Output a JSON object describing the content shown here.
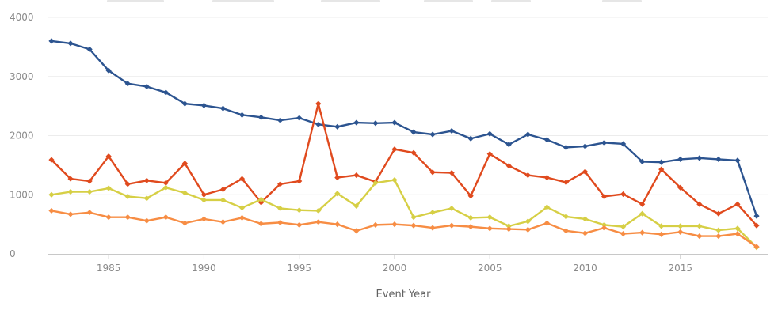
{
  "chart_data": {
    "type": "line",
    "title": "",
    "xlabel": "Event Year",
    "ylabel": "",
    "xlim": [
      1982,
      2019
    ],
    "ylim": [
      0,
      4000
    ],
    "x_ticks": [
      1985,
      1990,
      1995,
      2000,
      2005,
      2010,
      2015
    ],
    "y_ticks": [
      0,
      1000,
      2000,
      3000,
      4000
    ],
    "grid": "horizontal",
    "legend": "none",
    "x": [
      1982,
      1983,
      1984,
      1985,
      1986,
      1987,
      1988,
      1989,
      1990,
      1991,
      1992,
      1993,
      1994,
      1995,
      1996,
      1997,
      1998,
      1999,
      2000,
      2001,
      2002,
      2003,
      2004,
      2005,
      2006,
      2007,
      2008,
      2009,
      2010,
      2011,
      2012,
      2013,
      2014,
      2015,
      2016,
      2017,
      2018,
      2019
    ],
    "series": [
      {
        "color": "#2c5490",
        "values": [
          3600,
          3560,
          3460,
          3100,
          2880,
          2830,
          2730,
          2540,
          2510,
          2460,
          2350,
          2310,
          2260,
          2300,
          2190,
          2150,
          2220,
          2210,
          2220,
          2060,
          2020,
          2080,
          1950,
          2030,
          1850,
          2020,
          1930,
          1800,
          1820,
          1880,
          1860,
          1560,
          1550,
          1600,
          1620,
          1600,
          1580,
          640
        ]
      },
      {
        "color": "#e04a1e",
        "values": [
          1590,
          1270,
          1230,
          1650,
          1180,
          1240,
          1200,
          1530,
          1000,
          1090,
          1270,
          870,
          1180,
          1230,
          2540,
          1290,
          1330,
          1220,
          1770,
          1710,
          1380,
          1370,
          980,
          1690,
          1490,
          1330,
          1290,
          1210,
          1390,
          970,
          1010,
          840,
          1430,
          1120,
          840,
          680,
          840,
          480
        ]
      },
      {
        "color": "#d6cf45",
        "values": [
          1000,
          1050,
          1050,
          1110,
          970,
          940,
          1120,
          1030,
          910,
          910,
          780,
          920,
          770,
          740,
          730,
          1020,
          810,
          1200,
          1250,
          620,
          700,
          770,
          610,
          620,
          470,
          550,
          790,
          630,
          590,
          490,
          460,
          680,
          470,
          470,
          470,
          400,
          430,
          110
        ]
      },
      {
        "color": "#f78d44",
        "values": [
          730,
          670,
          700,
          620,
          620,
          560,
          620,
          520,
          590,
          540,
          610,
          510,
          530,
          490,
          540,
          500,
          390,
          490,
          500,
          480,
          440,
          480,
          460,
          430,
          420,
          410,
          520,
          390,
          350,
          440,
          340,
          360,
          330,
          370,
          300,
          300,
          340,
          120
        ]
      }
    ]
  }
}
